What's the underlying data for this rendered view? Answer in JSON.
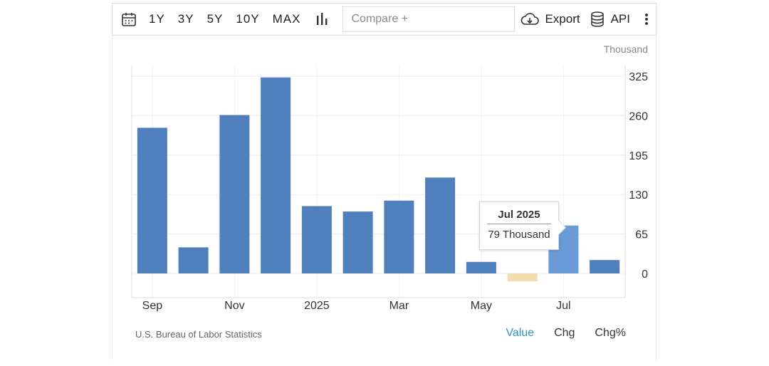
{
  "toolbar": {
    "ranges": [
      "1Y",
      "3Y",
      "5Y",
      "10Y",
      "MAX"
    ],
    "compare_placeholder": "Compare +",
    "export_label": "Export",
    "api_label": "API",
    "icons": [
      "calendar-icon",
      "bar-chart-icon",
      "cloud-download-icon",
      "database-icon",
      "more-vertical-icon"
    ]
  },
  "tooltip": {
    "title": "Jul 2025",
    "value_text": "79 Thousand"
  },
  "footer": {
    "source": "U.S. Bureau of Labor Statistics",
    "tabs": [
      "Value",
      "Chg",
      "Chg%"
    ],
    "active_tab": "Value"
  },
  "chart_data": {
    "type": "bar",
    "unit": "Thousand",
    "categories": [
      "Sep 2024",
      "Oct 2024",
      "Nov 2024",
      "Dec 2024",
      "Jan 2025",
      "Feb 2025",
      "Mar 2025",
      "Apr 2025",
      "May 2025",
      "Jun 2025",
      "Jul 2025",
      "Aug 2025"
    ],
    "values": [
      240,
      43,
      261,
      323,
      111,
      102,
      120,
      158,
      19,
      -13,
      79,
      22
    ],
    "x_tick_labels": [
      "Sep",
      "Nov",
      "2025",
      "Mar",
      "May",
      "Jul"
    ],
    "y_ticks": [
      0,
      65,
      130,
      195,
      260,
      325
    ],
    "ylim": [
      -40,
      340
    ],
    "bar_color": "#4f7fbc",
    "highlight_color": "#6a9bd6",
    "negative_color": "#f2dcae",
    "highlight_index": 10,
    "grid": true
  }
}
